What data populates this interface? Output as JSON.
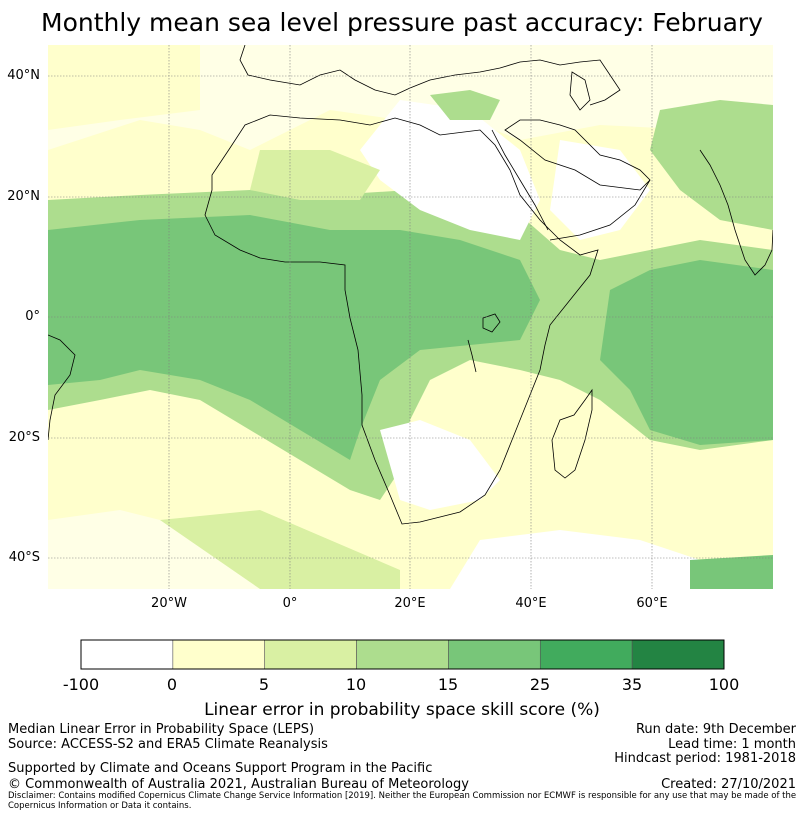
{
  "title": "Monthly mean sea level pressure past accuracy: February",
  "map": {
    "lat_ticks": [
      "40°N",
      "20°N",
      "0°",
      "20°S",
      "40°S"
    ],
    "lon_ticks": [
      "20°W",
      "0°",
      "20°E",
      "40°E",
      "60°E"
    ],
    "extent": {
      "lon_min": -40,
      "lon_max": 80,
      "lat_min": -45,
      "lat_max": 45
    }
  },
  "colorbar": {
    "title": "Linear error in probability space skill score (%)",
    "labels": [
      "-100",
      "0",
      "5",
      "10",
      "15",
      "25",
      "35",
      "100"
    ],
    "colors": [
      "#ffffff",
      "#ffffcc",
      "#d9f0a3",
      "#addd8e",
      "#78c679",
      "#41ab5d",
      "#238443"
    ]
  },
  "info": {
    "line1": "Median Linear Error in Probability Space (LEPS)",
    "line2": "Source: ACCESS-S2 and ERA5 Climate Reanalysis",
    "line3": "Supported by Climate and Oceans Support Program in the Pacific",
    "line4": "© Commonwealth of Australia 2021, Australian Bureau of Meteorology",
    "run_date": "Run date: 9th December",
    "lead_time": "Lead time: 1 month",
    "hindcast": "Hindcast period: 1981-2018",
    "created": "Created: 27/10/2021",
    "disclaimer": "Disclaimer: Contains modified Copernicus Climate Change Service Information [2019]. Neither the European Commission nor ECMWF is responsible for any use that may be made of the Copernicus Information or Data it contains."
  }
}
